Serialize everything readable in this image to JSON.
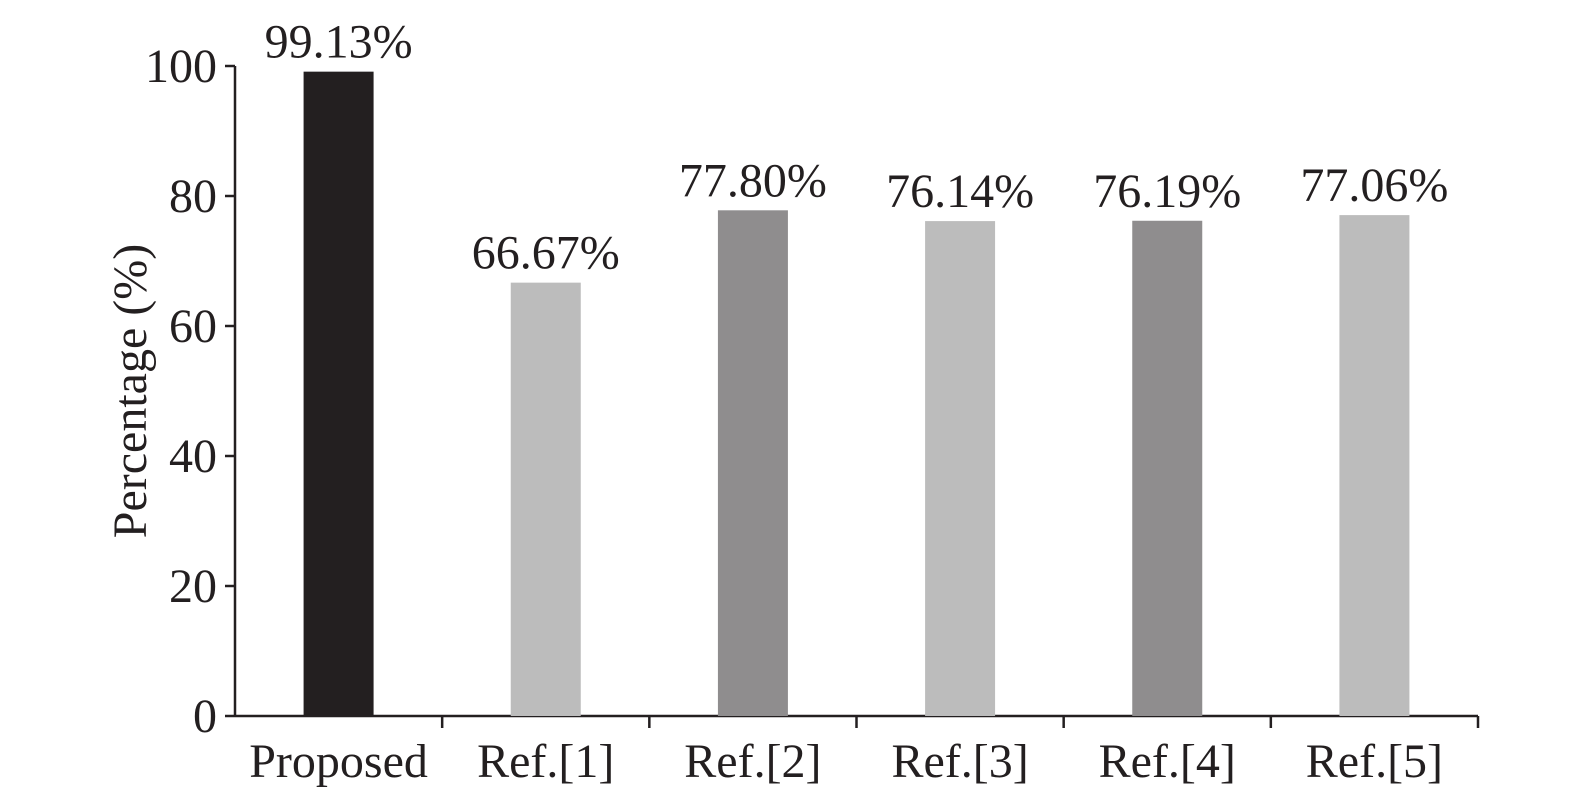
{
  "chart_data": {
    "type": "bar",
    "y_label": "Percentage (%)",
    "categories": [
      "Proposed",
      "Ref.[1]",
      "Ref.[2]",
      "Ref.[3]",
      "Ref.[4]",
      "Ref.[5]"
    ],
    "values": [
      99.13,
      66.67,
      77.8,
      76.14,
      76.19,
      77.06
    ],
    "value_labels": [
      "99.13%",
      "66.67%",
      "77.80%",
      "76.14%",
      "76.19%",
      "77.06%"
    ],
    "colors": [
      "#231f20",
      "#bcbcbc",
      "#8f8d8e",
      "#bcbcbc",
      "#8f8d8e",
      "#bcbcbc"
    ],
    "ylim": [
      0,
      100
    ],
    "yticks": [
      0,
      20,
      40,
      60,
      80,
      100
    ],
    "grid": false
  }
}
